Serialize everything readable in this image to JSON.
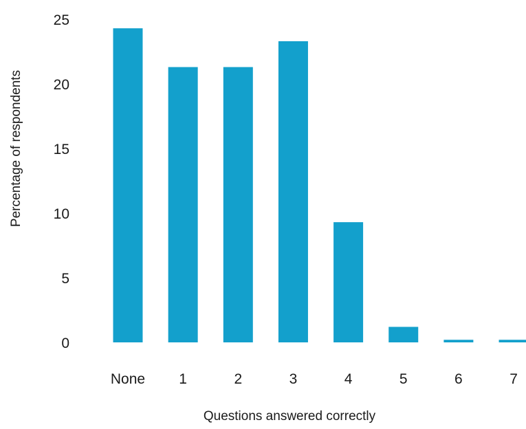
{
  "chart_data": {
    "type": "bar",
    "title": "",
    "xlabel": "Questions answered correctly",
    "ylabel": "Percentage of respondents",
    "categories": [
      "None",
      "1",
      "2",
      "3",
      "4",
      "5",
      "6",
      "7"
    ],
    "values": [
      24.3,
      21.3,
      21.3,
      23.3,
      9.3,
      1.2,
      0.2,
      0.2
    ],
    "ylim": [
      0,
      25
    ],
    "yticks": [
      "0",
      "5",
      "10",
      "15",
      "20",
      "25"
    ],
    "grid": false,
    "legend": "none",
    "colors": {
      "bar": "#13a0cc",
      "text": "#1a1a1a"
    }
  }
}
